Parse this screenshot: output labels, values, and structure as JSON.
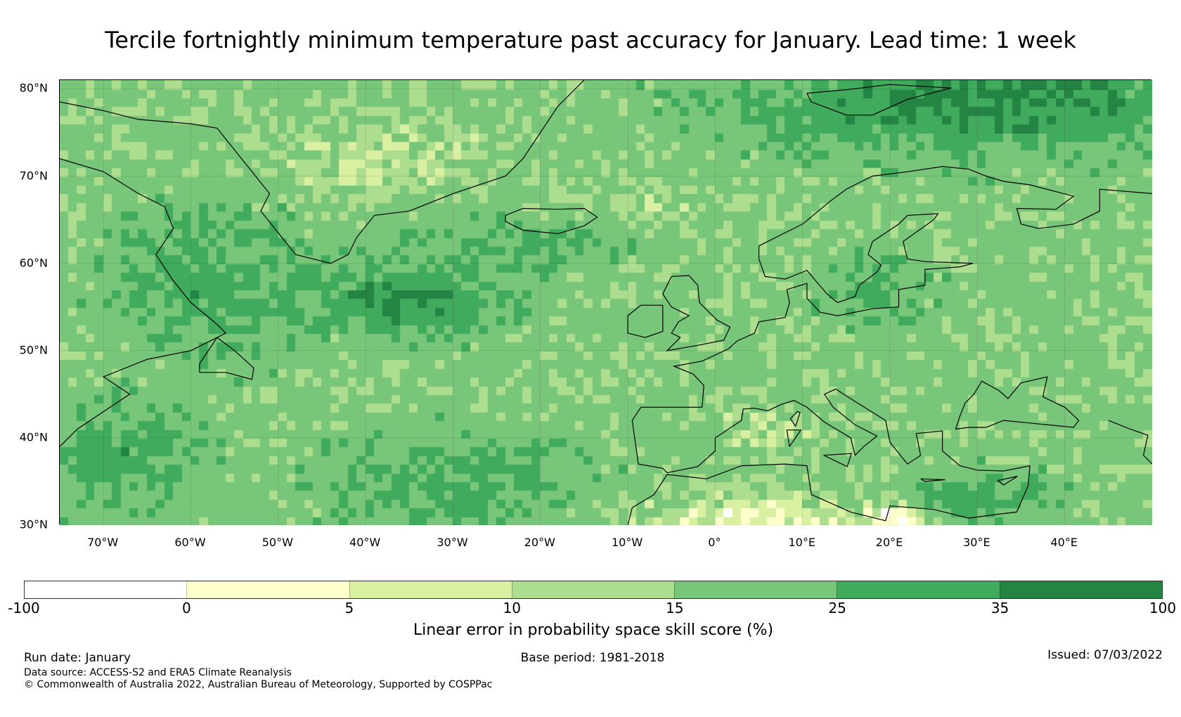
{
  "title": "Tercile fortnightly minimum temperature past accuracy for January. Lead time: 1 week",
  "map": {
    "lon_range": [
      -75,
      50
    ],
    "lat_range": [
      30,
      81
    ],
    "lat_labels": [
      "80°N",
      "70°N",
      "60°N",
      "50°N",
      "40°N",
      "30°N"
    ],
    "lat_values": [
      80,
      70,
      60,
      50,
      40,
      30
    ],
    "lon_labels": [
      "70°W",
      "60°W",
      "50°W",
      "40°W",
      "30°W",
      "20°W",
      "10°W",
      "0°",
      "10°E",
      "20°E",
      "30°E",
      "40°E"
    ],
    "lon_values": [
      -70,
      -60,
      -50,
      -40,
      -30,
      -20,
      -10,
      0,
      10,
      20,
      30,
      40
    ]
  },
  "colorbar": {
    "ticks": [
      "-100",
      "0",
      "5",
      "10",
      "15",
      "25",
      "35",
      "100"
    ],
    "colors": [
      "#ffffff",
      "#ffffcc",
      "#d9f0a3",
      "#addd8e",
      "#78c679",
      "#41ab5d",
      "#238443"
    ],
    "label": "Linear error in probability space skill score (%)"
  },
  "footer": {
    "run_date": "Run date: January",
    "base_period": "Base period: 1981-2018",
    "issued": "Issued: 07/03/2022",
    "data_source": "Data source: ACCESS-S2 and ERA5 Climate Reanalysis",
    "copyright": "© Commonwealth of Australia 2022, Australian Bureau of Meteorology, Supported by COSPPac"
  }
}
